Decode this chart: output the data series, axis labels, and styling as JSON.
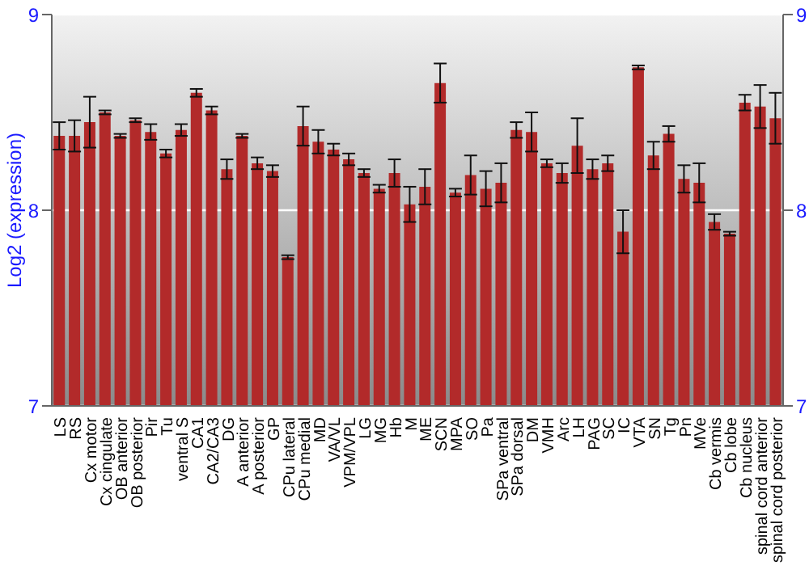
{
  "chart_data": {
    "type": "bar",
    "ylabel": "Log2 (expression)",
    "categories": [
      "LS",
      "RS",
      "Cx motor",
      "Cx cingulate",
      "OB anterior",
      "OB posterior",
      "Pir",
      "Tu",
      "ventral S",
      "CA1",
      "CA2/CA3",
      "DG",
      "A anterior",
      "A posterior",
      "GP",
      "CPu lateral",
      "CPu medial",
      "MD",
      "VA/VL",
      "VPM/VPL",
      "LG",
      "MG",
      "Hb",
      "M",
      "ME",
      "SCN",
      "MPA",
      "SO",
      "Pa",
      "SPa ventral",
      "SPa dorsal",
      "DM",
      "VMH",
      "Arc",
      "LH",
      "PAG",
      "SC",
      "IC",
      "VTA",
      "SN",
      "Tg",
      "Pn",
      "MVe",
      "Cb vermis",
      "Cb lobe",
      "Cb nucleus",
      "spinal cord anterior",
      "spinal cord posterior"
    ],
    "series": [
      {
        "color": "#b22a2a",
        "values": [
          8.38,
          8.38,
          8.45,
          8.5,
          8.38,
          8.46,
          8.4,
          8.29,
          8.41,
          8.6,
          8.51,
          8.21,
          8.38,
          8.24,
          8.2,
          7.76,
          8.43,
          8.35,
          8.31,
          8.26,
          8.19,
          8.11,
          8.19,
          8.03,
          8.12,
          8.65,
          8.09,
          8.18,
          8.11,
          8.14,
          8.41,
          8.4,
          8.24,
          8.19,
          8.33,
          8.21,
          8.24,
          7.89,
          8.73,
          8.28,
          8.39,
          8.16,
          8.14,
          7.94,
          7.88,
          8.55,
          8.53,
          8.47
        ],
        "errors": [
          0.07,
          0.08,
          0.13,
          0.01,
          0.01,
          0.01,
          0.04,
          0.02,
          0.03,
          0.02,
          0.02,
          0.05,
          0.01,
          0.03,
          0.03,
          0.01,
          0.1,
          0.06,
          0.03,
          0.03,
          0.02,
          0.02,
          0.07,
          0.09,
          0.09,
          0.1,
          0.02,
          0.1,
          0.09,
          0.1,
          0.04,
          0.1,
          0.02,
          0.05,
          0.14,
          0.05,
          0.04,
          0.11,
          0.01,
          0.07,
          0.04,
          0.07,
          0.1,
          0.04,
          0.01,
          0.04,
          0.11,
          0.13
        ]
      }
    ],
    "ylim": [
      7,
      9
    ],
    "yticks": [
      7,
      8,
      9
    ],
    "y2lim": [
      7,
      9
    ],
    "y2ticks": [
      7,
      8,
      9
    ],
    "grid": "y"
  }
}
